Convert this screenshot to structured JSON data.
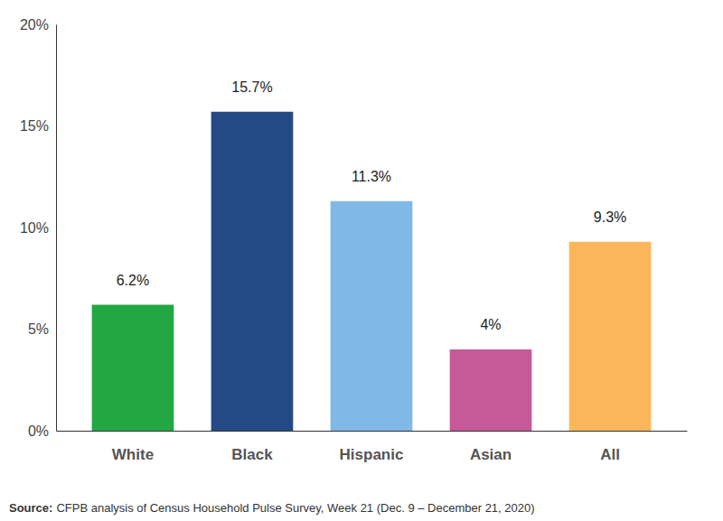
{
  "chart_data": {
    "type": "bar",
    "categories": [
      "White",
      "Black",
      "Hispanic",
      "Asian",
      "All"
    ],
    "values": [
      6.2,
      15.7,
      11.3,
      4,
      9.3
    ],
    "value_labels": [
      "6.2%",
      "15.7%",
      "11.3%",
      "4%",
      "9.3%"
    ],
    "colors": [
      "#22a843",
      "#244a85",
      "#80b8e8",
      "#c55a98",
      "#fbb65c"
    ],
    "data_labels": true,
    "grid": false,
    "ylim": [
      0,
      20
    ],
    "yticks": [
      {
        "value": 0,
        "label": "0%"
      },
      {
        "value": 5,
        "label": "5%"
      },
      {
        "value": 10,
        "label": "10%"
      },
      {
        "value": 15,
        "label": "15%"
      },
      {
        "value": 20,
        "label": "20%"
      }
    ],
    "source_label": "Source:",
    "source": "CFPB analysis of Census Household Pulse Survey, Week 21 (Dec. 9 – December 21, 2020)"
  }
}
